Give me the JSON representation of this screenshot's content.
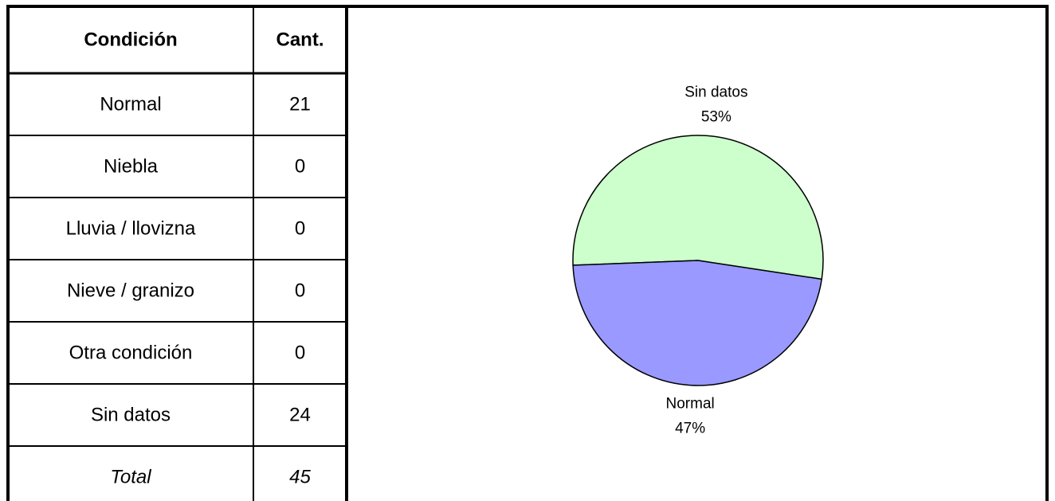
{
  "table": {
    "header": [
      "Condición",
      "Cant."
    ],
    "rows": [
      [
        "Normal",
        21
      ],
      [
        "Niebla",
        0
      ],
      [
        "Lluvia / llovizna",
        0
      ],
      [
        "Nieve / granizo",
        0
      ],
      [
        "Otra condición",
        0
      ],
      [
        "Sin datos",
        24
      ]
    ],
    "total": [
      "Total",
      45
    ]
  },
  "chart_data": {
    "type": "pie",
    "categories": [
      "Sin datos",
      "Normal"
    ],
    "values": [
      53,
      47
    ],
    "value_labels": [
      "53%",
      "47%"
    ],
    "colors": [
      "#ccffcc",
      "#9999ff"
    ]
  }
}
